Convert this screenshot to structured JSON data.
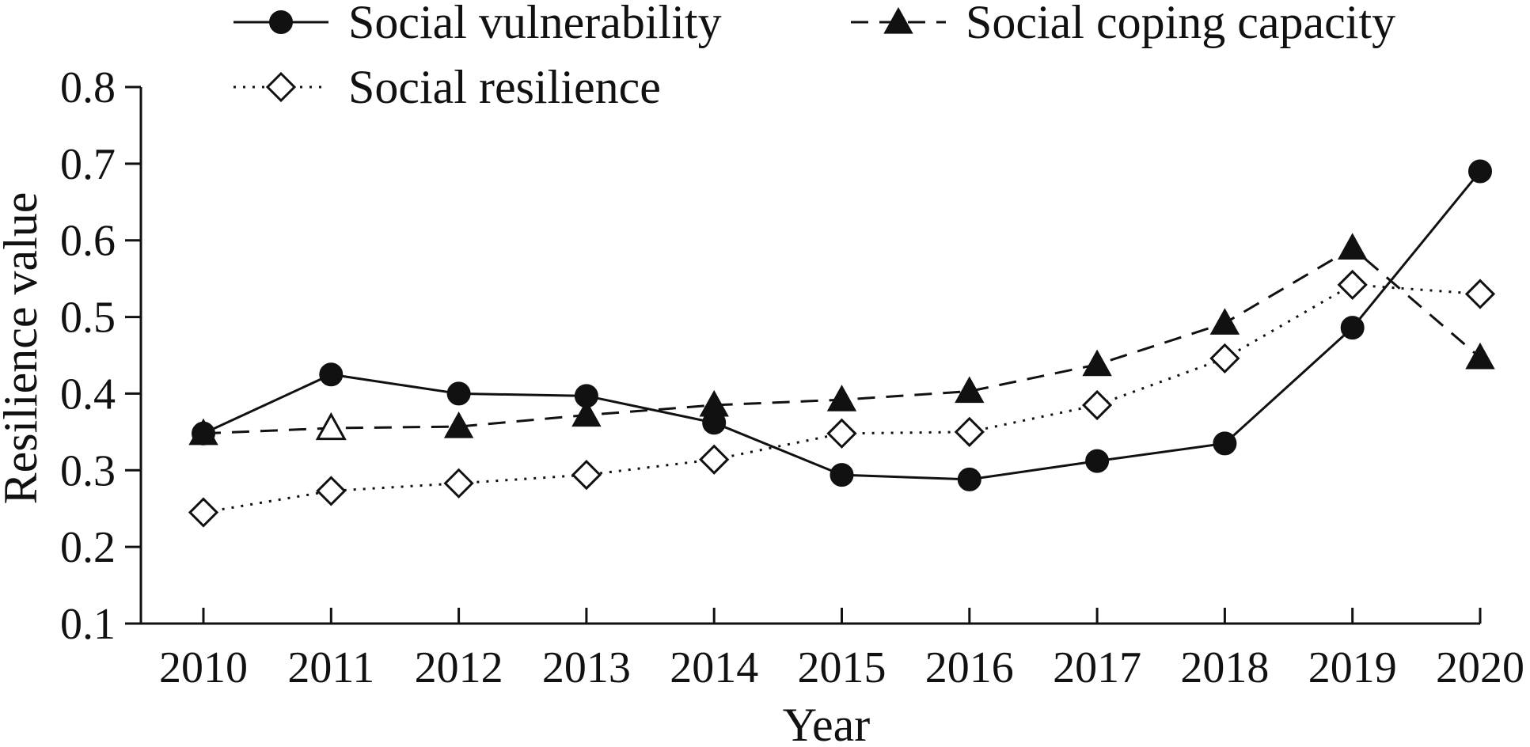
{
  "chart_data": {
    "type": "line",
    "title": "",
    "xlabel": "Year",
    "ylabel": "Resilience value",
    "categories": [
      "2010",
      "2011",
      "2012",
      "2013",
      "2014",
      "2015",
      "2016",
      "2017",
      "2018",
      "2019",
      "2020"
    ],
    "ylim": [
      0.1,
      0.8
    ],
    "yticks": [
      "0.1",
      "0.2",
      "0.3",
      "0.4",
      "0.5",
      "0.6",
      "0.7",
      "0.8"
    ],
    "grid": false,
    "legend_position": "top",
    "series": [
      {
        "name": "Social vulnerability",
        "marker": "filled-circle",
        "line_style": "solid",
        "values": [
          0.348,
          0.425,
          0.4,
          0.397,
          0.362,
          0.294,
          0.288,
          0.312,
          0.335,
          0.486,
          0.69
        ]
      },
      {
        "name": "Social coping capacity",
        "marker": "filled-triangle",
        "line_style": "dashed",
        "values": [
          0.348,
          0.355,
          0.357,
          0.372,
          0.385,
          0.392,
          0.403,
          0.438,
          0.492,
          0.59,
          0.447
        ]
      },
      {
        "name": "Social resilience",
        "marker": "open-diamond",
        "line_style": "dotted",
        "values": [
          0.245,
          0.273,
          0.283,
          0.294,
          0.314,
          0.348,
          0.35,
          0.385,
          0.446,
          0.542,
          0.53
        ]
      }
    ]
  }
}
